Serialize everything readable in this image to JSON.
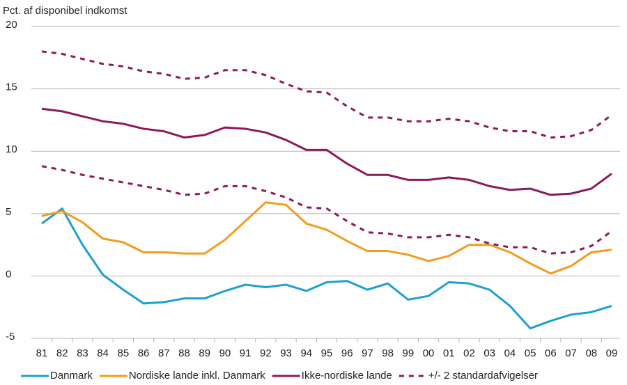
{
  "chart_data": {
    "type": "line",
    "y_label": "Pct. af disponibel indkomst",
    "categories": [
      "81",
      "82",
      "83",
      "84",
      "85",
      "86",
      "87",
      "88",
      "89",
      "90",
      "91",
      "92",
      "93",
      "94",
      "95",
      "96",
      "97",
      "98",
      "99",
      "00",
      "01",
      "02",
      "03",
      "04",
      "05",
      "06",
      "07",
      "08",
      "09"
    ],
    "ylim": [
      -5,
      20
    ],
    "yticks": [
      -5,
      0,
      5,
      10,
      15,
      20
    ],
    "grid": true,
    "legend": "bottom",
    "series": [
      {
        "name": "Danmark",
        "color": "#1e9fd2",
        "values": [
          4.2,
          5.4,
          2.5,
          0.1,
          -1.1,
          -2.2,
          -2.1,
          -1.8,
          -1.8,
          -1.2,
          -0.7,
          -0.9,
          -0.7,
          -1.2,
          -0.5,
          -0.4,
          -1.1,
          -0.6,
          -1.9,
          -1.6,
          -0.5,
          -0.6,
          -1.1,
          -2.4,
          -4.2,
          -3.6,
          -3.1,
          -2.9,
          -2.4
        ]
      },
      {
        "name": "Nordiske lande inkl. Danmark",
        "color": "#f39c1e",
        "values": [
          4.8,
          5.2,
          4.3,
          3.0,
          2.7,
          1.9,
          1.9,
          1.8,
          1.8,
          2.9,
          4.4,
          5.9,
          5.7,
          4.2,
          3.7,
          2.8,
          2.0,
          2.0,
          1.7,
          1.2,
          1.6,
          2.5,
          2.5,
          1.9,
          1.0,
          0.2,
          0.8,
          1.9,
          2.1
        ]
      },
      {
        "name": "Ikke-nordiske lande",
        "color": "#8c1a5a",
        "values": [
          13.4,
          13.2,
          12.8,
          12.4,
          12.2,
          11.8,
          11.6,
          11.1,
          11.3,
          11.9,
          11.8,
          11.5,
          10.9,
          10.1,
          10.1,
          9.0,
          8.1,
          8.1,
          7.7,
          7.7,
          7.9,
          7.7,
          7.2,
          6.9,
          7.0,
          6.5,
          6.6,
          7.0,
          8.2
        ]
      },
      {
        "name": "+/- 2 standardafvigelser",
        "color": "#8c1a5a",
        "dashed": true,
        "values": [
          18.0,
          17.8,
          17.4,
          17.0,
          16.8,
          16.4,
          16.2,
          15.8,
          15.9,
          16.5,
          16.5,
          16.1,
          15.4,
          14.8,
          14.7,
          13.6,
          12.7,
          12.7,
          12.4,
          12.4,
          12.6,
          12.4,
          11.9,
          11.6,
          11.6,
          11.1,
          11.2,
          11.7,
          12.9
        ]
      },
      {
        "color": "#8c1a5a",
        "dashed": true,
        "values": [
          8.8,
          8.5,
          8.1,
          7.8,
          7.5,
          7.2,
          6.9,
          6.5,
          6.6,
          7.2,
          7.2,
          6.8,
          6.3,
          5.5,
          5.4,
          4.4,
          3.5,
          3.4,
          3.1,
          3.1,
          3.3,
          3.1,
          2.6,
          2.3,
          2.3,
          1.8,
          1.9,
          2.4,
          3.6
        ]
      }
    ]
  }
}
